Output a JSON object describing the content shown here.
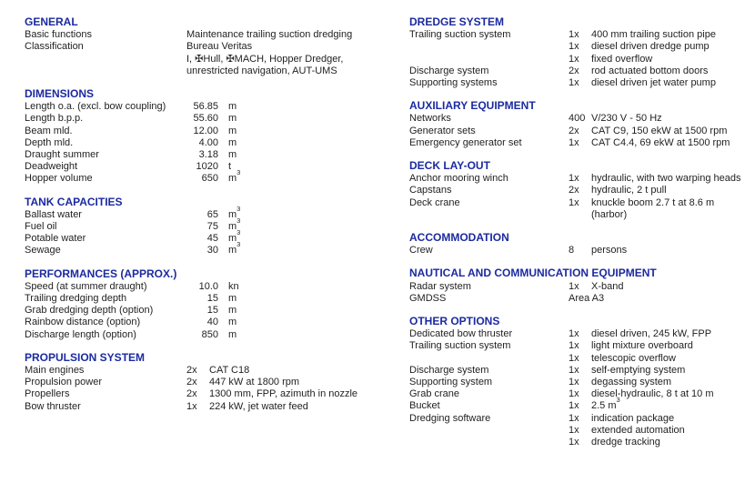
{
  "page": {
    "background_color": "#ffffff",
    "heading_color": "#1b2aa0",
    "text_color": "#1f1f1f"
  },
  "columns": [
    {
      "id": "left",
      "sections": [
        {
          "title": "GENERAL",
          "rows": [
            {
              "label": "Basic functions",
              "value": "Maintenance trailing suction dredging"
            },
            {
              "label": "Classification",
              "value": "Bureau Veritas"
            },
            {
              "label": "",
              "value": "I, ✠Hull, ✠MACH, Hopper Dredger,"
            },
            {
              "label": "",
              "value": "unrestricted navigation, AUT-UMS"
            }
          ]
        },
        {
          "title": "DIMENSIONS",
          "rows": [
            {
              "label": "Length o.a. (excl. bow coupling)",
              "num": "56.85",
              "unit": "m"
            },
            {
              "label": "Length b.p.p.",
              "num": "55.60",
              "unit": "m"
            },
            {
              "label": "Beam mld.",
              "num": "12.00",
              "unit": "m"
            },
            {
              "label": "Depth mld.",
              "num": "4.00",
              "unit": "m"
            },
            {
              "label": "Draught summer",
              "num": "3.18",
              "unit": "m"
            },
            {
              "label": "Deadweight",
              "num": "1020",
              "unit": "t"
            },
            {
              "label": "Hopper volume",
              "num": "650",
              "unit": "m",
              "unit_sup": "3"
            }
          ]
        },
        {
          "title": "TANK CAPACITIES",
          "rows": [
            {
              "label": "Ballast water",
              "num": "65",
              "unit": "m",
              "unit_sup": "3"
            },
            {
              "label": "Fuel oil",
              "num": "75",
              "unit": "m",
              "unit_sup": "3"
            },
            {
              "label": "Potable water",
              "num": "45",
              "unit": "m",
              "unit_sup": "3"
            },
            {
              "label": "Sewage",
              "num": "30",
              "unit": "m",
              "unit_sup": "3"
            }
          ]
        },
        {
          "title": "PERFORMANCES (APPROX.)",
          "rows": [
            {
              "label": "Speed (at summer draught)",
              "num": "10.0",
              "unit": "kn"
            },
            {
              "label": "Trailing dredging depth",
              "num": "15",
              "unit": "m"
            },
            {
              "label": "Grab dredging depth (option)",
              "num": "15",
              "unit": "m"
            },
            {
              "label": "Rainbow distance (option)",
              "num": "40",
              "unit": "m"
            },
            {
              "label": "Discharge length (option)",
              "num": "850",
              "unit": "m"
            }
          ]
        },
        {
          "title": "PROPULSION SYSTEM",
          "rows": [
            {
              "label": "Main engines",
              "qty": "2x",
              "value": "CAT C18"
            },
            {
              "label": "Propulsion power",
              "qty": "2x",
              "value": "447 kW at 1800 rpm"
            },
            {
              "label": "Propellers",
              "qty": "2x",
              "value": "1300 mm, FPP, azimuth in nozzle"
            },
            {
              "label": "Bow thruster",
              "qty": "1x",
              "value": "224 kW, jet water feed"
            }
          ]
        }
      ]
    },
    {
      "id": "right",
      "sections": [
        {
          "title": "DREDGE SYSTEM",
          "rows": [
            {
              "label": "Trailing suction system",
              "qty": "1x",
              "value": "400 mm trailing suction pipe"
            },
            {
              "label": "",
              "qty": "1x",
              "value": "diesel driven dredge pump"
            },
            {
              "label": "",
              "qty": "1x",
              "value": "fixed overflow"
            },
            {
              "label": "Discharge system",
              "qty": "2x",
              "value": "rod actuated bottom doors"
            },
            {
              "label": "Supporting systems",
              "qty": "1x",
              "value": "diesel driven jet water pump"
            }
          ]
        },
        {
          "title": "AUXILIARY EQUIPMENT",
          "rows": [
            {
              "label": "Networks",
              "qty": "400",
              "value": "V/230 V - 50 Hz"
            },
            {
              "label": "Generator sets",
              "qty": "2x",
              "value": "CAT C9, 150 ekW at 1500 rpm"
            },
            {
              "label": "Emergency generator set",
              "qty": "1x",
              "value": "CAT C4.4, 69 ekW at 1500 rpm"
            }
          ]
        },
        {
          "title": "DECK LAY-OUT",
          "rows": [
            {
              "label": "Anchor mooring winch",
              "qty": "1x",
              "value": "hydraulic, with two warping heads"
            },
            {
              "label": "Capstans",
              "qty": "2x",
              "value": "hydraulic, 2 t pull"
            },
            {
              "label": "Deck crane",
              "qty": "1x",
              "value": "knuckle boom 2.7 t at 8.6 m"
            },
            {
              "label": "",
              "qty": "",
              "value": "(harbor)"
            }
          ]
        },
        {
          "title": "ACCOMMODATION",
          "rows": [
            {
              "label": "Crew",
              "qty": "8",
              "value": "persons"
            }
          ]
        },
        {
          "title": "NAUTICAL AND COMMUNICATION EQUIPMENT",
          "rows": [
            {
              "label": "Radar system",
              "qty": "1x",
              "value": "X-band"
            },
            {
              "label": "GMDSS",
              "span": "Area A3"
            }
          ]
        },
        {
          "title": "OTHER OPTIONS",
          "rows": [
            {
              "label": "Dedicated bow thruster",
              "qty": "1x",
              "value": "diesel driven, 245 kW, FPP"
            },
            {
              "label": "Trailing suction system",
              "qty": "1x",
              "value": "light mixture overboard"
            },
            {
              "label": "",
              "qty": "1x",
              "value": "telescopic overflow"
            },
            {
              "label": "Discharge system",
              "qty": "1x",
              "value": "self-emptying system"
            },
            {
              "label": "Supporting system",
              "qty": "1x",
              "value": "degassing system"
            },
            {
              "label": "Grab crane",
              "qty": "1x",
              "value": "diesel-hydraulic, 8 t at 10 m"
            },
            {
              "label": "Bucket",
              "qty": "1x",
              "value": "2.5 m",
              "value_sup": "3"
            },
            {
              "label": "Dredging software",
              "qty": "1x",
              "value": "indication package"
            },
            {
              "label": "",
              "qty": "1x",
              "value": "extended automation"
            },
            {
              "label": "",
              "qty": "1x",
              "value": "dredge tracking"
            }
          ]
        }
      ]
    }
  ]
}
